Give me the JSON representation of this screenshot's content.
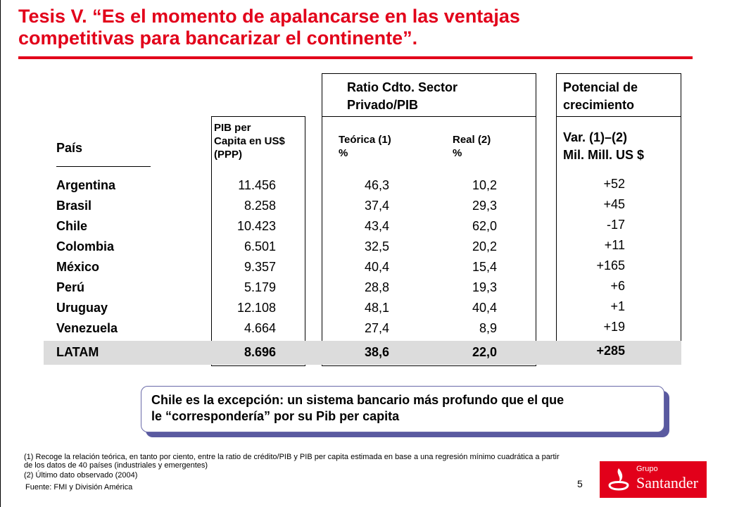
{
  "title": "Tesis V. “Es el momento de apalancarse en las ventajas\ncompetitivas para bancarizar el continente”.",
  "headers": {
    "pais": "País",
    "pib": "PIB per\nCapita en US$\n(PPP)",
    "ratio_group": "Ratio Cdto. Sector\n  Privado/PIB",
    "teorica": "Teórica (1)\n%",
    "real": "Real (2)\n%",
    "potencial_group": "Potencial de\ncrecimiento",
    "var": "Var. (1)–(2)\nMil. Mill. US $"
  },
  "rows": [
    {
      "country": "Argentina",
      "pib": "11.456",
      "teorica": "46,3",
      "real": "10,2",
      "var": "+52"
    },
    {
      "country": "Brasil",
      "pib": "8.258",
      "teorica": "37,4",
      "real": "29,3",
      "var": "+45"
    },
    {
      "country": "Chile",
      "pib": "10.423",
      "teorica": "43,4",
      "real": "62,0",
      "var": "-17"
    },
    {
      "country": "Colombia",
      "pib": "6.501",
      "teorica": "32,5",
      "real": "20,2",
      "var": "+11"
    },
    {
      "country": "México",
      "pib": "9.357",
      "teorica": "40,4",
      "real": "15,4",
      "var": "+165"
    },
    {
      "country": "Perú",
      "pib": "5.179",
      "teorica": "28,8",
      "real": "19,3",
      "var": "+6"
    },
    {
      "country": "Uruguay",
      "pib": "12.108",
      "teorica": "48,1",
      "real": "40,4",
      "var": "+1"
    },
    {
      "country": "Venezuela",
      "pib": "4.664",
      "teorica": "27,4",
      "real": "8,9",
      "var": "+19"
    },
    {
      "country": "LATAM",
      "pib": "8.696",
      "teorica": "38,6",
      "real": "22,0",
      "var": "+285"
    }
  ],
  "callout": "Chile es la excepción: un sistema bancario más profundo que el que\nle “correspondería” por su Pib per capita",
  "footnotes": {
    "fn1": "(1)  Recoge la relación teórica, en tanto por ciento, entre la ratio de crédito/PIB y PIB per capita estimada en base a una regresión mínimo cuadrática a partir\n       de los datos de 40 países (industriales y emergentes)",
    "fn2": "(2)  Último dato observado (2004)",
    "source": "Fuente: FMI y División América"
  },
  "page_number": "5",
  "logo": {
    "grupo": "Grupo",
    "name": "Santander",
    "color": "#e2001a"
  }
}
